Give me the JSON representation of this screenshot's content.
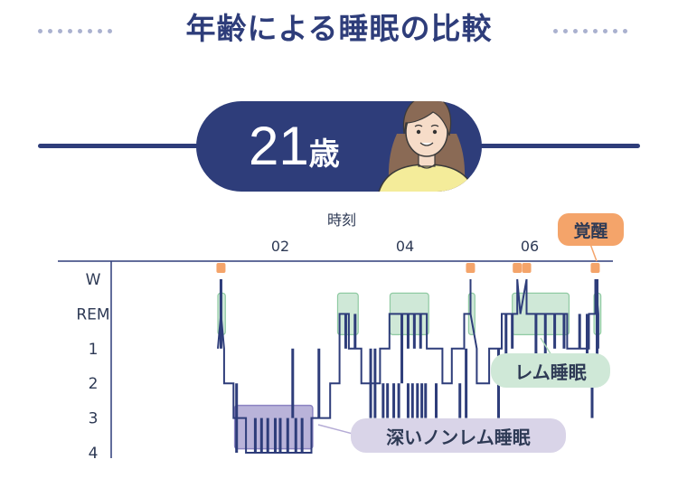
{
  "title": "年齢による睡眠の比較",
  "age_badge": {
    "number": "21",
    "unit": "歳"
  },
  "avatar": {
    "icon": "young-woman-icon"
  },
  "chart_data": {
    "type": "hypnogram",
    "xlabel": "時刻",
    "x_ticks": [
      {
        "value": 2,
        "label": "02"
      },
      {
        "value": 4,
        "label": "04"
      },
      {
        "value": 6,
        "label": "06"
      }
    ],
    "y_levels": [
      "W",
      "REM",
      "1",
      "2",
      "3",
      "4"
    ],
    "level_values": {
      "W": 0,
      "REM": 1,
      "1": 2,
      "2": 3,
      "3": 4,
      "4": 5
    },
    "x_range": [
      0.2,
      7.3
    ],
    "hypnogram": [
      [
        1.0,
        2
      ],
      [
        1.05,
        1
      ],
      [
        1.05,
        0
      ],
      [
        1.05,
        1
      ],
      [
        1.1,
        2
      ],
      [
        1.1,
        3
      ],
      [
        1.25,
        3
      ],
      [
        1.25,
        4
      ],
      [
        1.45,
        4
      ],
      [
        1.45,
        5
      ],
      [
        2.5,
        5
      ],
      [
        2.5,
        4
      ],
      [
        2.8,
        4
      ],
      [
        2.8,
        3
      ],
      [
        2.95,
        3
      ],
      [
        2.95,
        1
      ],
      [
        3.1,
        1
      ],
      [
        3.1,
        2
      ],
      [
        3.3,
        2
      ],
      [
        3.3,
        3
      ],
      [
        3.6,
        3
      ],
      [
        3.6,
        2
      ],
      [
        3.75,
        2
      ],
      [
        3.75,
        1
      ],
      [
        4.35,
        1
      ],
      [
        4.35,
        2
      ],
      [
        4.6,
        2
      ],
      [
        4.6,
        3
      ],
      [
        4.75,
        3
      ],
      [
        4.75,
        2
      ],
      [
        4.95,
        2
      ],
      [
        4.95,
        1
      ],
      [
        5.05,
        1
      ],
      [
        5.05,
        0
      ],
      [
        5.05,
        1
      ],
      [
        5.15,
        2
      ],
      [
        5.15,
        3
      ],
      [
        5.35,
        3
      ],
      [
        5.35,
        2
      ],
      [
        5.55,
        2
      ],
      [
        5.55,
        1
      ],
      [
        5.8,
        1
      ],
      [
        5.8,
        0
      ],
      [
        5.85,
        1
      ],
      [
        5.95,
        0
      ],
      [
        5.95,
        1
      ],
      [
        6.6,
        1
      ],
      [
        6.6,
        2
      ],
      [
        6.95,
        2
      ],
      [
        6.95,
        1
      ],
      [
        7.05,
        1
      ],
      [
        7.05,
        0
      ],
      [
        7.1,
        1
      ],
      [
        7.1,
        2
      ]
    ],
    "spikes": [
      [
        1.05,
        0,
        2
      ],
      [
        1.3,
        3,
        5
      ],
      [
        1.6,
        4,
        5
      ],
      [
        1.7,
        4,
        5
      ],
      [
        1.8,
        4,
        5
      ],
      [
        1.92,
        4,
        5
      ],
      [
        2.0,
        4,
        5
      ],
      [
        2.12,
        4,
        5
      ],
      [
        2.2,
        2,
        4
      ],
      [
        2.25,
        4,
        5
      ],
      [
        2.35,
        4,
        5
      ],
      [
        2.62,
        2,
        4
      ],
      [
        3.05,
        1,
        2
      ],
      [
        3.2,
        1,
        2
      ],
      [
        3.45,
        2,
        4
      ],
      [
        3.52,
        2,
        4
      ],
      [
        3.65,
        3,
        4
      ],
      [
        3.72,
        3,
        4
      ],
      [
        3.82,
        3,
        4
      ],
      [
        3.9,
        3,
        4
      ],
      [
        3.95,
        1,
        3
      ],
      [
        4.05,
        1,
        2
      ],
      [
        4.15,
        1,
        2
      ],
      [
        4.25,
        1,
        2
      ],
      [
        4.05,
        3,
        4
      ],
      [
        4.12,
        3,
        4
      ],
      [
        4.2,
        3,
        4
      ],
      [
        4.27,
        3,
        4
      ],
      [
        4.33,
        3,
        4
      ],
      [
        4.5,
        3,
        4
      ],
      [
        4.88,
        3,
        4
      ],
      [
        4.98,
        2,
        4
      ],
      [
        5.5,
        2,
        4
      ],
      [
        5.62,
        1,
        3
      ],
      [
        5.72,
        1,
        2
      ],
      [
        6.1,
        1,
        3
      ],
      [
        6.25,
        1,
        3
      ],
      [
        6.4,
        1,
        2
      ],
      [
        6.55,
        1,
        2
      ],
      [
        6.8,
        1,
        2
      ],
      [
        6.92,
        1,
        3
      ],
      [
        7.0,
        3,
        4
      ],
      [
        7.08,
        0,
        3
      ]
    ],
    "highlights": [
      {
        "kind": "rem",
        "x0": 1.0,
        "x1": 1.12
      },
      {
        "kind": "rem",
        "x0": 2.92,
        "x1": 3.25
      },
      {
        "kind": "rem",
        "x0": 3.76,
        "x1": 4.38
      },
      {
        "kind": "rem",
        "x0": 5.02,
        "x1": 5.12
      },
      {
        "kind": "rem",
        "x0": 5.72,
        "x1": 6.63
      },
      {
        "kind": "rem",
        "x0": 7.03,
        "x1": 7.14
      },
      {
        "kind": "deep",
        "x0": 1.27,
        "x1": 2.52
      }
    ],
    "wake_markers": [
      1.05,
      5.05,
      5.8,
      5.95,
      7.05
    ],
    "colors": {
      "line": "#2e3d7a",
      "rem_fill": "#cfe8d7",
      "rem_stroke": "#8fcaa2",
      "deep_fill": "#b9b3d9",
      "deep_stroke": "#8c84c2",
      "wake_marker": "#f4a46a"
    }
  },
  "callouts": {
    "rem": "レム睡眠",
    "deep": "深いノンレム睡眠",
    "wake": "覚醒"
  }
}
